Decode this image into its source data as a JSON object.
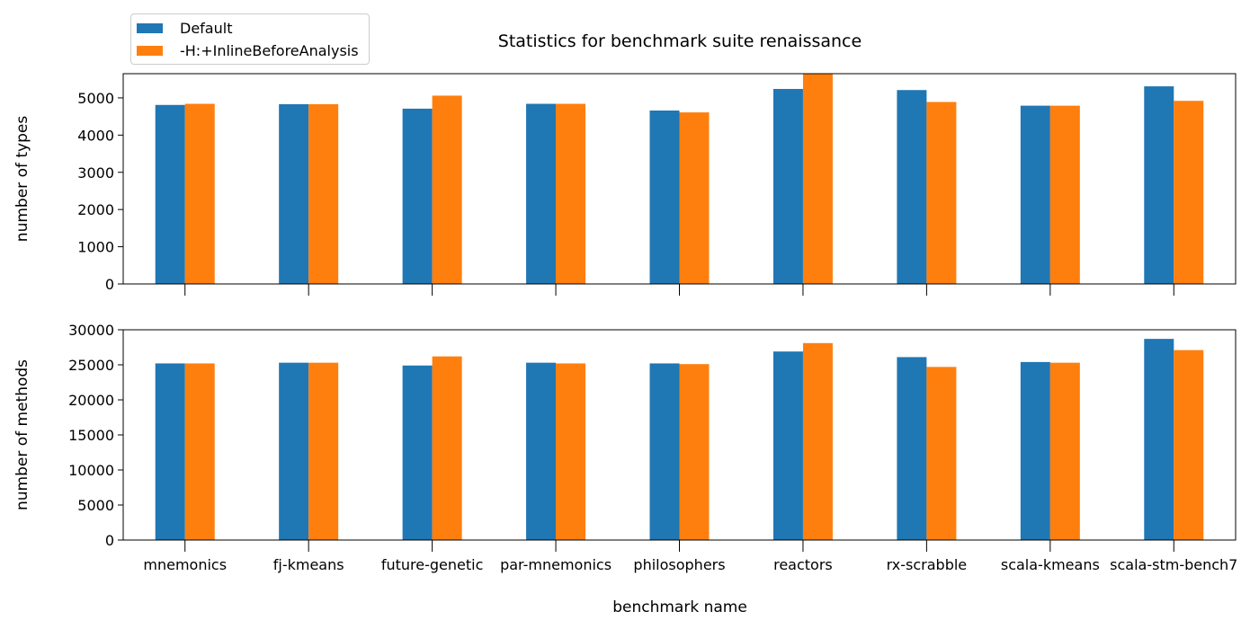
{
  "chart_data": {
    "type": "bar",
    "title": "Statistics for benchmark suite renaissance",
    "xlabel": "benchmark name",
    "categories": [
      "mnemonics",
      "fj-kmeans",
      "future-genetic",
      "par-mnemonics",
      "philosophers",
      "reactors",
      "rx-scrabble",
      "scala-kmeans",
      "scala-stm-bench7"
    ],
    "legend": {
      "placement": "top-left",
      "entries": [
        {
          "label": "Default",
          "color": "#1f77b4"
        },
        {
          "label": "-H:+InlineBeforeAnalysis",
          "color": "#ff7f0e"
        }
      ]
    },
    "grid": false,
    "panels": [
      {
        "ylabel": "number of types",
        "ylim": [
          0,
          5650
        ],
        "yticks": [
          0,
          1000,
          2000,
          3000,
          4000,
          5000
        ],
        "series": [
          {
            "name": "Default",
            "color": "#1f77b4",
            "values": [
              4810,
              4830,
              4710,
              4840,
              4660,
              5240,
              5210,
              4790,
              5310
            ]
          },
          {
            "name": "-H:+InlineBeforeAnalysis",
            "color": "#ff7f0e",
            "values": [
              4840,
              4830,
              5060,
              4840,
              4610,
              5640,
              4890,
              4790,
              4920
            ]
          }
        ]
      },
      {
        "ylabel": "number of methods",
        "ylim": [
          0,
          30000
        ],
        "yticks": [
          0,
          5000,
          10000,
          15000,
          20000,
          25000,
          30000
        ],
        "series": [
          {
            "name": "Default",
            "color": "#1f77b4",
            "values": [
              25200,
              25300,
              24900,
              25300,
              25200,
              26900,
              26100,
              25400,
              28700
            ]
          },
          {
            "name": "-H:+InlineBeforeAnalysis",
            "color": "#ff7f0e",
            "values": [
              25200,
              25300,
              26200,
              25200,
              25100,
              28100,
              24700,
              25300,
              27100
            ]
          }
        ]
      }
    ]
  }
}
